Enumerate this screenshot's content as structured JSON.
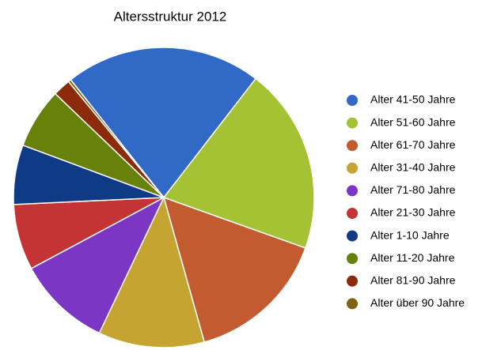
{
  "chart_data": {
    "type": "pie",
    "title": "Altersstruktur 2012",
    "categories": [
      "Alter 41-50 Jahre",
      "Alter 51-60 Jahre",
      "Alter 61-70 Jahre",
      "Alter 31-40 Jahre",
      "Alter 71-80 Jahre",
      "Alter 21-30 Jahre",
      "Alter 1-10 Jahre",
      "Alter 11-20 Jahre",
      "Alter 81-90 Jahre",
      "Alter über 90 Jahre"
    ],
    "values": [
      21.1,
      20.0,
      15.2,
      11.4,
      10.1,
      7.1,
      6.4,
      6.5,
      1.9,
      0.3
    ],
    "colors": [
      "#3169c6",
      "#a4c233",
      "#c25b2f",
      "#c6a431",
      "#7b36c3",
      "#c43434",
      "#0f3a86",
      "#67810b",
      "#8b2b0b",
      "#7c6412"
    ],
    "legend": "right"
  }
}
